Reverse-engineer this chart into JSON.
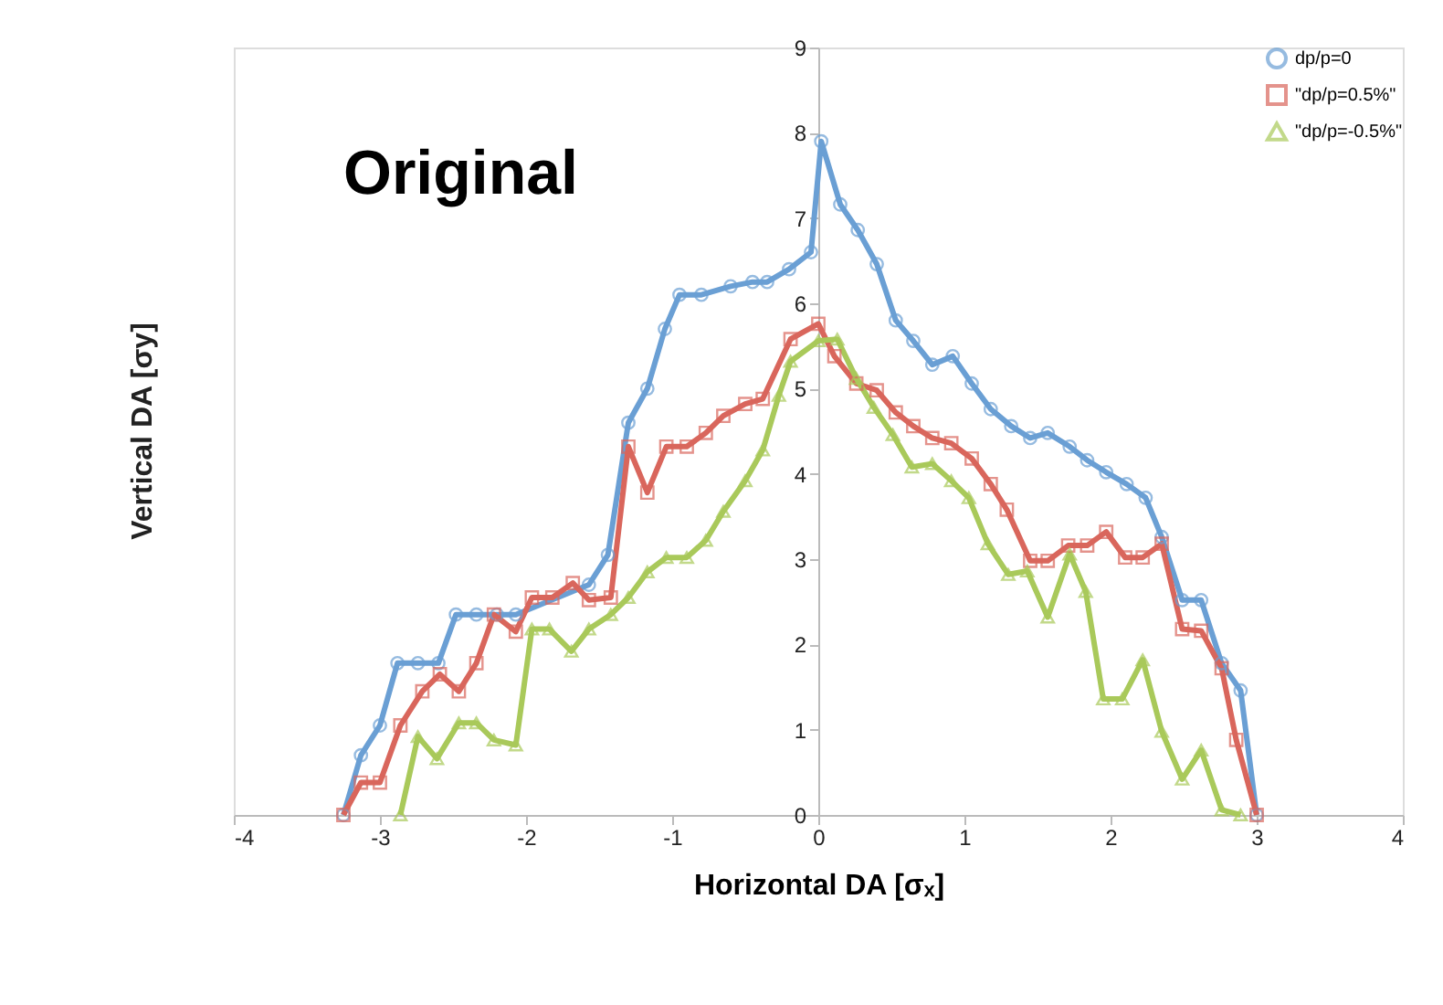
{
  "chart_data": {
    "type": "line",
    "xlabel": "Horizontal DA [σₓ]",
    "ylabel": "Vertical DA [σy]",
    "annotations": [
      "Original"
    ],
    "xlim": [
      -4,
      4
    ],
    "xticks": [
      -4,
      -3,
      -2,
      -1,
      0,
      1,
      2,
      3,
      4
    ],
    "ylim": [
      0,
      9
    ],
    "yticks": [
      0,
      1,
      2,
      3,
      4,
      5,
      6,
      7,
      8,
      9
    ],
    "grid": false,
    "legend": "top right",
    "line_style": "solid",
    "series": [
      {
        "name": "dp/p=0",
        "color": "#6a9fd4",
        "marker": "circle",
        "x": [
          -3.25,
          -3.13,
          -3.0,
          -2.88,
          -2.74,
          -2.6,
          -2.48,
          -2.34,
          -2.2,
          -2.07,
          -1.57,
          -1.44,
          -1.3,
          -1.17,
          -1.05,
          -0.95,
          -0.8,
          -0.6,
          -0.45,
          -0.35,
          -0.2,
          -0.05,
          0.02,
          0.15,
          0.27,
          0.4,
          0.53,
          0.65,
          0.78,
          0.92,
          1.05,
          1.18,
          1.32,
          1.45,
          1.57,
          1.72,
          1.84,
          1.97,
          2.11,
          2.24,
          2.35,
          2.49,
          2.62,
          2.76,
          2.89,
          3.0
        ],
        "values": [
          0,
          0.7,
          1.05,
          1.78,
          1.78,
          1.78,
          2.35,
          2.35,
          2.35,
          2.35,
          2.7,
          3.05,
          4.6,
          5.0,
          5.7,
          6.1,
          6.1,
          6.2,
          6.25,
          6.25,
          6.4,
          6.6,
          7.9,
          7.16,
          6.86,
          6.46,
          5.8,
          5.56,
          5.28,
          5.38,
          5.06,
          4.76,
          4.56,
          4.42,
          4.48,
          4.32,
          4.16,
          4.02,
          3.88,
          3.72,
          3.26,
          2.52,
          2.52,
          1.78,
          1.46,
          0
        ]
      },
      {
        "name": "\"dp/p=0.5%\"",
        "color": "#d9665c",
        "marker": "square",
        "x": [
          -3.25,
          -3.13,
          -3.0,
          -2.86,
          -2.71,
          -2.59,
          -2.46,
          -2.34,
          -2.22,
          -2.07,
          -1.96,
          -1.82,
          -1.68,
          -1.57,
          -1.42,
          -1.3,
          -1.17,
          -1.04,
          -0.9,
          -0.77,
          -0.65,
          -0.5,
          -0.38,
          -0.19,
          0.0,
          0.11,
          0.26,
          0.4,
          0.53,
          0.65,
          0.78,
          0.91,
          1.05,
          1.18,
          1.29,
          1.45,
          1.57,
          1.71,
          1.84,
          1.97,
          2.1,
          2.22,
          2.35,
          2.49,
          2.62,
          2.76,
          2.86,
          3.0
        ],
        "values": [
          0,
          0.38,
          0.38,
          1.05,
          1.45,
          1.65,
          1.45,
          1.78,
          2.35,
          2.15,
          2.55,
          2.55,
          2.72,
          2.52,
          2.55,
          4.32,
          3.78,
          4.32,
          4.32,
          4.48,
          4.68,
          4.82,
          4.88,
          5.58,
          5.76,
          5.38,
          5.06,
          4.98,
          4.72,
          4.56,
          4.42,
          4.36,
          4.18,
          3.88,
          3.58,
          2.98,
          2.98,
          3.16,
          3.16,
          3.32,
          3.02,
          3.02,
          3.18,
          2.18,
          2.16,
          1.72,
          0.88,
          0
        ]
      },
      {
        "name": "\"dp/p=-0.5%\"",
        "color": "#a9c95a",
        "marker": "triangle",
        "x": [
          -2.86,
          -2.74,
          -2.61,
          -2.46,
          -2.34,
          -2.22,
          -2.07,
          -1.96,
          -1.84,
          -1.69,
          -1.57,
          -1.42,
          -1.3,
          -1.17,
          -1.04,
          -0.9,
          -0.77,
          -0.65,
          -0.5,
          -0.38,
          -0.27,
          -0.19,
          0.0,
          0.13,
          0.26,
          0.38,
          0.51,
          0.64,
          0.78,
          0.91,
          1.03,
          1.16,
          1.3,
          1.43,
          1.57,
          1.72,
          1.83,
          1.95,
          2.08,
          2.22,
          2.35,
          2.49,
          2.62,
          2.76,
          2.89
        ],
        "values": [
          0,
          0.92,
          0.66,
          1.08,
          1.08,
          0.88,
          0.82,
          2.18,
          2.18,
          1.92,
          2.18,
          2.35,
          2.55,
          2.85,
          3.02,
          3.02,
          3.22,
          3.56,
          3.92,
          4.28,
          4.92,
          5.32,
          5.56,
          5.58,
          5.12,
          4.78,
          4.46,
          4.08,
          4.12,
          3.92,
          3.72,
          3.18,
          2.82,
          2.86,
          2.32,
          3.06,
          2.62,
          1.36,
          1.36,
          1.82,
          0.98,
          0.42,
          0.76,
          0.06,
          0
        ]
      }
    ]
  }
}
